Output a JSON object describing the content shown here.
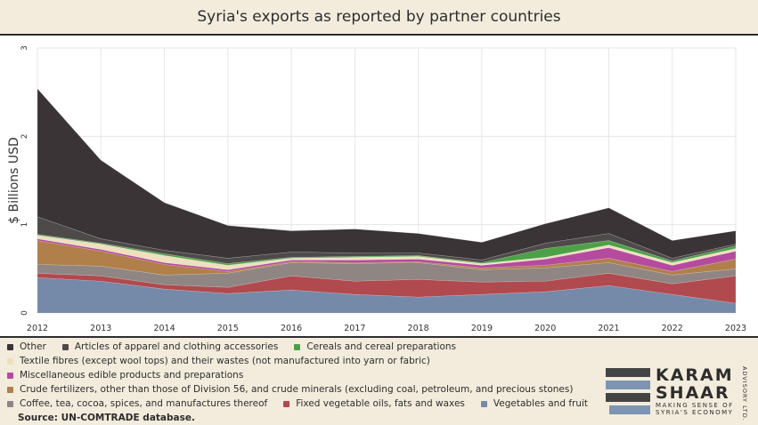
{
  "title": "Syria's exports as reported by partner countries",
  "source": "Source: UN-COMTRADE database.",
  "logo": {
    "line1": "KARAM",
    "line2": "SHAAR",
    "tag1": "MAKING SENSE OF",
    "tag2": "SYRIA'S ECONOMY",
    "side": "ADVISORY LTD.",
    "colors": [
      "#444444",
      "#7d94b3",
      "#444444",
      "#7d94b3"
    ]
  },
  "chart_data": {
    "type": "area",
    "stacked": true,
    "title": "Syria's exports as reported by partner countries",
    "xlabel": "",
    "ylabel": "$ Billions USD",
    "ylim": [
      0,
      3
    ],
    "yticks": [
      0,
      1,
      2,
      3
    ],
    "grid": true,
    "legend_position": "bottom",
    "x": [
      "2012",
      "2013",
      "2014",
      "2015",
      "2016",
      "2017",
      "2018",
      "2019",
      "2020",
      "2021",
      "2022",
      "2023"
    ],
    "series": [
      {
        "name": "Vegetables and fruit",
        "color": "#7589a8",
        "values": [
          0.4,
          0.36,
          0.27,
          0.22,
          0.26,
          0.21,
          0.18,
          0.21,
          0.24,
          0.31,
          0.21,
          0.11
        ]
      },
      {
        "name": "Fixed vegetable oils, fats and waxes",
        "color": "#b04a4e",
        "values": [
          0.05,
          0.06,
          0.05,
          0.07,
          0.16,
          0.15,
          0.2,
          0.14,
          0.12,
          0.14,
          0.12,
          0.31
        ]
      },
      {
        "name": "Coffee, tea, cocoa, spices, and manufactures thereof",
        "color": "#8f8583",
        "values": [
          0.1,
          0.11,
          0.11,
          0.16,
          0.15,
          0.2,
          0.19,
          0.14,
          0.15,
          0.12,
          0.1,
          0.08
        ]
      },
      {
        "name": "Crude fertilizers, other than those of Division 56, and crude minerals (excluding coal, petroleum, and precious stones)",
        "color": "#b07f4a",
        "values": [
          0.27,
          0.17,
          0.12,
          0.02,
          0.01,
          0.01,
          0.01,
          0.02,
          0.03,
          0.05,
          0.04,
          0.11
        ]
      },
      {
        "name": "Miscellaneous edible products and preparations",
        "color": "#b54b9f",
        "values": [
          0.02,
          0.02,
          0.02,
          0.02,
          0.02,
          0.03,
          0.03,
          0.03,
          0.07,
          0.12,
          0.07,
          0.09
        ]
      },
      {
        "name": "Textile fibres (except wool tops) and their wastes (not manufactured into yarn or fabric)",
        "color": "#eedfbe",
        "values": [
          0.04,
          0.06,
          0.08,
          0.05,
          0.02,
          0.03,
          0.03,
          0.02,
          0.02,
          0.03,
          0.03,
          0.03
        ]
      },
      {
        "name": "Cereals and cereal preparations",
        "color": "#4ca146",
        "values": [
          0.01,
          0.01,
          0.02,
          0.02,
          0.01,
          0.01,
          0.01,
          0.01,
          0.1,
          0.05,
          0.02,
          0.03
        ]
      },
      {
        "name": "Articles of apparel and clothing accessories",
        "color": "#4e4a4a",
        "values": [
          0.2,
          0.05,
          0.04,
          0.06,
          0.06,
          0.04,
          0.03,
          0.03,
          0.06,
          0.08,
          0.03,
          0.02
        ]
      },
      {
        "name": "Other",
        "color": "#3a3436",
        "values": [
          1.45,
          0.89,
          0.54,
          0.37,
          0.24,
          0.27,
          0.22,
          0.2,
          0.22,
          0.29,
          0.2,
          0.15
        ]
      }
    ]
  }
}
